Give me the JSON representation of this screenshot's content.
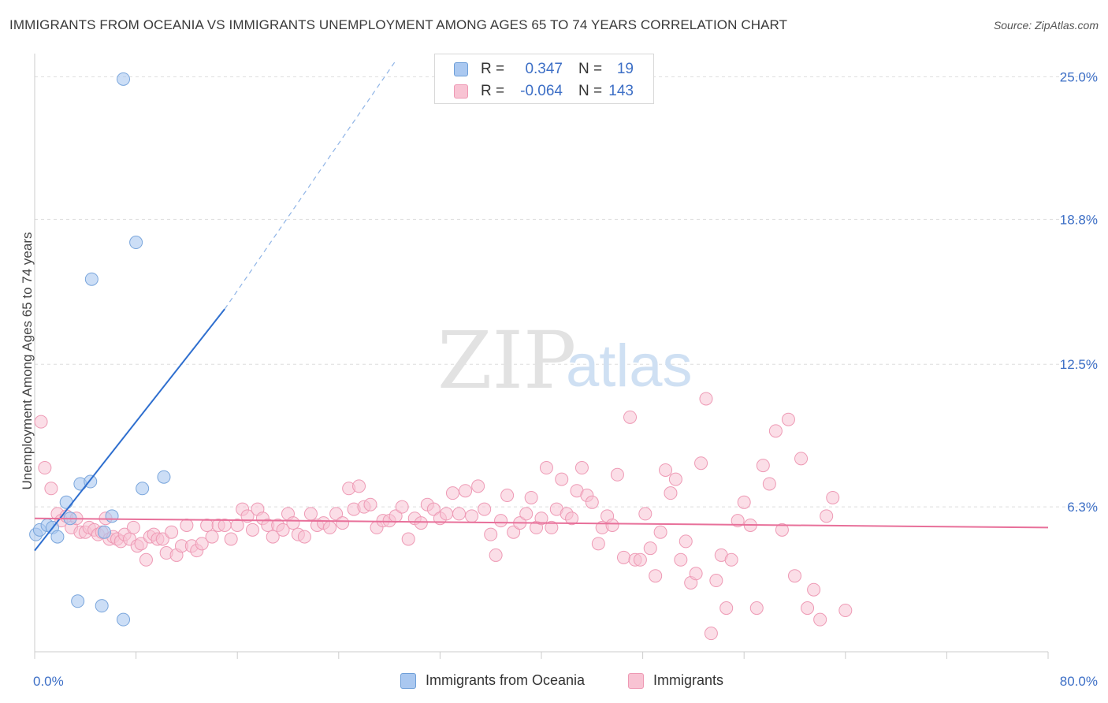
{
  "title": "IMMIGRANTS FROM OCEANIA VS IMMIGRANTS UNEMPLOYMENT AMONG AGES 65 TO 74 YEARS CORRELATION CHART",
  "source": "Source: ZipAtlas.com",
  "watermark": {
    "zip": "ZIP",
    "atlas": "atlas"
  },
  "legend_top": [
    {
      "r_label": "R =",
      "r_value": "0.347",
      "n_label": "N =",
      "n_value": "19",
      "color": "#aac8f0",
      "border": "#6f9fd8"
    },
    {
      "r_label": "R =",
      "r_value": "-0.064",
      "n_label": "N =",
      "n_value": "143",
      "color": "#f8c3d3",
      "border": "#ee99b4"
    }
  ],
  "legend_bottom": [
    {
      "label": "Immigrants from Oceania",
      "color": "#aac8f0",
      "border": "#6f9fd8"
    },
    {
      "label": "Immigrants",
      "color": "#f8c3d3",
      "border": "#ee99b4"
    }
  ],
  "chart_data": {
    "type": "scatter",
    "title": "IMMIGRANTS FROM OCEANIA VS IMMIGRANTS UNEMPLOYMENT AMONG AGES 65 TO 74 YEARS CORRELATION CHART",
    "xlabel": "",
    "ylabel": "Unemployment Among Ages 65 to 74 years",
    "xlim": [
      0,
      80
    ],
    "ylim": [
      0,
      25.7
    ],
    "x_tick_labels": [
      "0.0%",
      "80.0%"
    ],
    "y_ticks": [
      6.3,
      12.5,
      18.8,
      25.0
    ],
    "y_tick_labels": [
      "6.3%",
      "12.5%",
      "18.8%",
      "25.0%"
    ],
    "grid": "horizontal dashed",
    "colors": {
      "oceania": "#aac8f0",
      "oceania_edge": "#7aa6dc",
      "oceania_line": "#2f6fcf",
      "immigrants": "#f8c3d3",
      "immigrants_edge": "#ee9ab5",
      "immigrants_line": "#e8709a",
      "grid": "#dddddd",
      "axis": "#cccccc"
    },
    "series": [
      {
        "name": "Immigrants from Oceania",
        "points": [
          [
            0.1,
            5.1
          ],
          [
            0.4,
            5.3
          ],
          [
            1.0,
            5.5
          ],
          [
            1.4,
            5.4
          ],
          [
            1.8,
            5.0
          ],
          [
            2.5,
            6.5
          ],
          [
            2.8,
            5.8
          ],
          [
            3.4,
            2.2
          ],
          [
            3.6,
            7.3
          ],
          [
            4.4,
            7.4
          ],
          [
            4.5,
            16.2
          ],
          [
            5.3,
            2.0
          ],
          [
            5.5,
            5.2
          ],
          [
            6.1,
            5.9
          ],
          [
            7.0,
            24.9
          ],
          [
            7.0,
            1.4
          ],
          [
            8.0,
            17.8
          ],
          [
            8.5,
            7.1
          ],
          [
            10.2,
            7.6
          ]
        ],
        "trend": {
          "x": [
            0.0,
            15.0
          ],
          "y": [
            4.4,
            14.9
          ],
          "dashed_to": {
            "x": 28.5,
            "y": 25.7
          }
        }
      },
      {
        "name": "Immigrants",
        "points": [
          [
            0.5,
            10.0
          ],
          [
            0.8,
            8.0
          ],
          [
            1.3,
            7.1
          ],
          [
            1.8,
            6.0
          ],
          [
            2.1,
            5.7
          ],
          [
            2.5,
            5.9
          ],
          [
            2.9,
            5.4
          ],
          [
            3.3,
            5.8
          ],
          [
            3.6,
            5.2
          ],
          [
            4.0,
            5.2
          ],
          [
            4.3,
            5.4
          ],
          [
            4.7,
            5.3
          ],
          [
            5.0,
            5.1
          ],
          [
            5.3,
            5.2
          ],
          [
            5.6,
            5.8
          ],
          [
            5.9,
            4.9
          ],
          [
            6.2,
            5.0
          ],
          [
            6.5,
            4.9
          ],
          [
            6.8,
            4.8
          ],
          [
            7.1,
            5.1
          ],
          [
            7.5,
            4.9
          ],
          [
            7.8,
            5.4
          ],
          [
            8.1,
            4.6
          ],
          [
            8.4,
            4.7
          ],
          [
            8.8,
            4.0
          ],
          [
            9.1,
            5.0
          ],
          [
            9.4,
            5.1
          ],
          [
            9.7,
            4.9
          ],
          [
            10.1,
            4.9
          ],
          [
            10.4,
            4.3
          ],
          [
            10.8,
            5.2
          ],
          [
            11.2,
            4.2
          ],
          [
            11.6,
            4.6
          ],
          [
            12.0,
            5.5
          ],
          [
            12.4,
            4.6
          ],
          [
            12.8,
            4.4
          ],
          [
            13.2,
            4.7
          ],
          [
            13.6,
            5.5
          ],
          [
            14.0,
            5.0
          ],
          [
            14.5,
            5.5
          ],
          [
            15.0,
            5.5
          ],
          [
            15.5,
            4.9
          ],
          [
            16.0,
            5.5
          ],
          [
            16.4,
            6.2
          ],
          [
            16.8,
            5.9
          ],
          [
            17.2,
            5.3
          ],
          [
            17.6,
            6.2
          ],
          [
            18.0,
            5.8
          ],
          [
            18.4,
            5.5
          ],
          [
            18.8,
            5.0
          ],
          [
            19.2,
            5.5
          ],
          [
            19.6,
            5.3
          ],
          [
            20.0,
            6.0
          ],
          [
            20.4,
            5.6
          ],
          [
            20.8,
            5.1
          ],
          [
            21.3,
            5.0
          ],
          [
            21.8,
            6.0
          ],
          [
            22.3,
            5.5
          ],
          [
            22.8,
            5.6
          ],
          [
            23.3,
            5.4
          ],
          [
            23.8,
            6.0
          ],
          [
            24.3,
            5.6
          ],
          [
            24.8,
            7.1
          ],
          [
            25.2,
            6.2
          ],
          [
            25.6,
            7.2
          ],
          [
            26.0,
            6.3
          ],
          [
            26.5,
            6.4
          ],
          [
            27.0,
            5.4
          ],
          [
            27.5,
            5.7
          ],
          [
            28.0,
            5.7
          ],
          [
            28.5,
            5.9
          ],
          [
            29.0,
            6.3
          ],
          [
            29.5,
            4.9
          ],
          [
            30.0,
            5.8
          ],
          [
            30.5,
            5.6
          ],
          [
            31.0,
            6.4
          ],
          [
            31.5,
            6.2
          ],
          [
            32.0,
            5.8
          ],
          [
            32.5,
            6.0
          ],
          [
            33.0,
            6.9
          ],
          [
            33.5,
            6.0
          ],
          [
            34.0,
            7.0
          ],
          [
            34.5,
            5.9
          ],
          [
            35.0,
            7.2
          ],
          [
            35.5,
            6.2
          ],
          [
            36.0,
            5.1
          ],
          [
            36.4,
            4.2
          ],
          [
            36.8,
            5.7
          ],
          [
            37.3,
            6.8
          ],
          [
            37.8,
            5.2
          ],
          [
            38.3,
            5.6
          ],
          [
            38.8,
            6.0
          ],
          [
            39.2,
            6.7
          ],
          [
            39.6,
            5.4
          ],
          [
            40.0,
            5.8
          ],
          [
            40.4,
            8.0
          ],
          [
            40.8,
            5.4
          ],
          [
            41.2,
            6.2
          ],
          [
            41.6,
            7.5
          ],
          [
            42.0,
            6.0
          ],
          [
            42.4,
            5.8
          ],
          [
            42.8,
            7.0
          ],
          [
            43.2,
            8.0
          ],
          [
            43.6,
            6.8
          ],
          [
            44.0,
            6.5
          ],
          [
            44.5,
            4.7
          ],
          [
            44.8,
            5.4
          ],
          [
            45.2,
            5.9
          ],
          [
            45.6,
            5.5
          ],
          [
            46.0,
            7.7
          ],
          [
            46.5,
            4.1
          ],
          [
            47.0,
            10.2
          ],
          [
            47.4,
            4.0
          ],
          [
            47.8,
            4.0
          ],
          [
            48.2,
            6.0
          ],
          [
            48.6,
            4.5
          ],
          [
            49.0,
            3.3
          ],
          [
            49.4,
            5.2
          ],
          [
            49.8,
            7.9
          ],
          [
            50.2,
            6.9
          ],
          [
            50.6,
            7.5
          ],
          [
            51.0,
            4.0
          ],
          [
            51.4,
            4.8
          ],
          [
            51.8,
            3.0
          ],
          [
            52.2,
            3.4
          ],
          [
            52.6,
            8.2
          ],
          [
            53.0,
            11.0
          ],
          [
            53.4,
            0.8
          ],
          [
            53.8,
            3.1
          ],
          [
            54.2,
            4.2
          ],
          [
            54.6,
            1.9
          ],
          [
            55.0,
            4.0
          ],
          [
            55.5,
            5.7
          ],
          [
            56.0,
            6.5
          ],
          [
            56.5,
            5.5
          ],
          [
            57.0,
            1.9
          ],
          [
            57.5,
            8.1
          ],
          [
            58.0,
            7.3
          ],
          [
            58.5,
            9.6
          ],
          [
            59.0,
            5.3
          ],
          [
            59.5,
            10.1
          ],
          [
            60.0,
            3.3
          ],
          [
            60.5,
            8.4
          ],
          [
            61.0,
            1.9
          ],
          [
            61.5,
            2.7
          ],
          [
            62.0,
            1.4
          ],
          [
            62.5,
            5.9
          ],
          [
            63.0,
            6.7
          ],
          [
            64.0,
            1.8
          ]
        ],
        "trend": {
          "x": [
            0.0,
            80.0
          ],
          "y": [
            5.8,
            5.4
          ]
        }
      }
    ]
  }
}
